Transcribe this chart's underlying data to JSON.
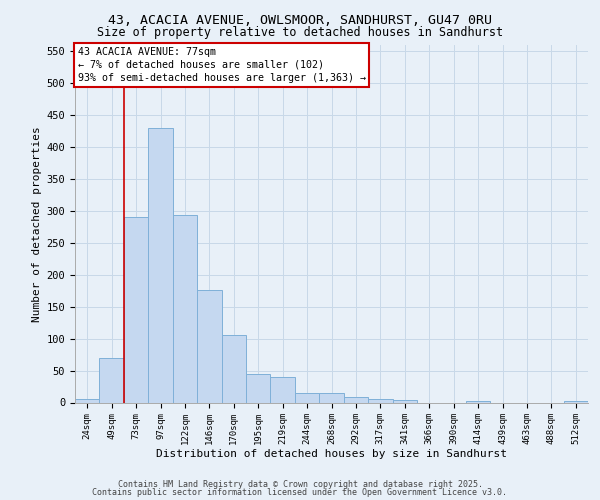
{
  "title_line1": "43, ACACIA AVENUE, OWLSMOOR, SANDHURST, GU47 0RU",
  "title_line2": "Size of property relative to detached houses in Sandhurst",
  "xlabel": "Distribution of detached houses by size in Sandhurst",
  "ylabel": "Number of detached properties",
  "categories": [
    "24sqm",
    "49sqm",
    "73sqm",
    "97sqm",
    "122sqm",
    "146sqm",
    "170sqm",
    "195sqm",
    "219sqm",
    "244sqm",
    "268sqm",
    "292sqm",
    "317sqm",
    "341sqm",
    "366sqm",
    "390sqm",
    "414sqm",
    "439sqm",
    "463sqm",
    "488sqm",
    "512sqm"
  ],
  "values": [
    6,
    70,
    290,
    430,
    293,
    176,
    105,
    45,
    40,
    15,
    15,
    8,
    5,
    4,
    0,
    0,
    3,
    0,
    0,
    0,
    2
  ],
  "bar_color": "#c5d8f0",
  "bar_edge_color": "#7fb0d8",
  "grid_color": "#c8d8e8",
  "vline_color": "#cc0000",
  "vline_x": 1.5,
  "annotation_title": "43 ACACIA AVENUE: 77sqm",
  "annotation_line1": "← 7% of detached houses are smaller (102)",
  "annotation_line2": "93% of semi-detached houses are larger (1,363) →",
  "annotation_box_facecolor": "#ffffff",
  "annotation_box_edgecolor": "#cc0000",
  "ylim_max": 560,
  "yticks": [
    0,
    50,
    100,
    150,
    200,
    250,
    300,
    350,
    400,
    450,
    500,
    550
  ],
  "background_color": "#e8f0f8",
  "footer_line1": "Contains HM Land Registry data © Crown copyright and database right 2025.",
  "footer_line2": "Contains public sector information licensed under the Open Government Licence v3.0."
}
